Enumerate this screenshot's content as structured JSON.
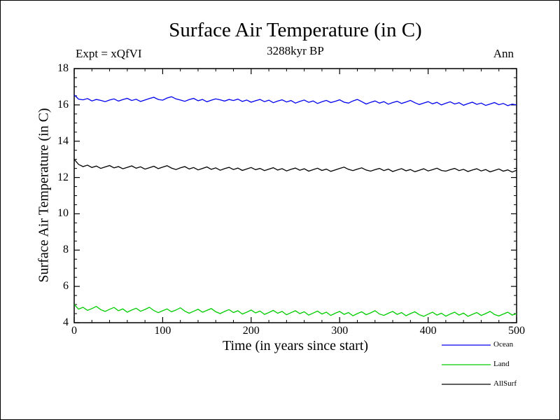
{
  "chart_data": {
    "type": "line",
    "title": "Surface Air Temperature (in C)",
    "annotations": {
      "experiment": "Expt = xQfVI",
      "time_bp": "3288kyr BP",
      "period": "Ann"
    },
    "xlabel": "Time (in years since start)",
    "ylabel": "Surface Air Temperature (in C)",
    "xlim": [
      0,
      500
    ],
    "ylim": [
      4,
      18
    ],
    "x_ticks": [
      0,
      100,
      200,
      300,
      400,
      500
    ],
    "x_minor_step": 20,
    "y_ticks": [
      4,
      6,
      8,
      10,
      12,
      14,
      16,
      18
    ],
    "y_minor_step": 0.5,
    "x_step": 5,
    "grid": false,
    "legend_position": "bottom-right",
    "frame_color": "#000000",
    "series": [
      {
        "name": "Ocean",
        "color": "#0000ee",
        "values": [
          16.55,
          16.32,
          16.28,
          16.35,
          16.22,
          16.3,
          16.25,
          16.18,
          16.27,
          16.33,
          16.21,
          16.29,
          16.36,
          16.24,
          16.31,
          16.19,
          16.27,
          16.35,
          16.42,
          16.3,
          16.26,
          16.38,
          16.45,
          16.33,
          16.27,
          16.2,
          16.29,
          16.36,
          16.23,
          16.3,
          16.17,
          16.26,
          16.33,
          16.28,
          16.21,
          16.3,
          16.24,
          16.32,
          16.19,
          16.27,
          16.15,
          16.23,
          16.3,
          16.18,
          16.26,
          16.12,
          16.21,
          16.28,
          16.16,
          16.24,
          16.1,
          16.19,
          16.27,
          16.14,
          16.22,
          16.08,
          16.17,
          16.25,
          16.13,
          16.2,
          16.28,
          16.15,
          16.1,
          16.22,
          16.3,
          16.18,
          16.05,
          16.14,
          16.22,
          16.1,
          16.18,
          16.04,
          16.13,
          16.2,
          16.08,
          16.16,
          16.25,
          16.12,
          16.02,
          16.1,
          16.18,
          16.06,
          16.14,
          16.0,
          16.09,
          16.17,
          16.05,
          16.12,
          15.98,
          16.07,
          16.15,
          16.03,
          16.1,
          15.97,
          16.05,
          16.13,
          16.01,
          16.08,
          15.96,
          16.04,
          16.0
        ]
      },
      {
        "name": "Land",
        "color": "#00cc00",
        "values": [
          5.0,
          4.75,
          4.85,
          4.68,
          4.78,
          4.9,
          4.72,
          4.62,
          4.74,
          4.84,
          4.66,
          4.76,
          4.58,
          4.7,
          4.8,
          4.63,
          4.73,
          4.85,
          4.67,
          4.55,
          4.66,
          4.76,
          4.6,
          4.7,
          4.82,
          4.64,
          4.52,
          4.63,
          4.74,
          4.58,
          4.68,
          4.78,
          4.6,
          4.5,
          4.62,
          4.72,
          4.56,
          4.66,
          4.48,
          4.58,
          4.7,
          4.54,
          4.64,
          4.46,
          4.56,
          4.68,
          4.52,
          4.62,
          4.44,
          4.55,
          4.66,
          4.5,
          4.6,
          4.42,
          4.53,
          4.64,
          4.48,
          4.58,
          4.4,
          4.52,
          4.62,
          4.46,
          4.56,
          4.38,
          4.5,
          4.6,
          4.44,
          4.54,
          4.66,
          4.48,
          4.4,
          4.52,
          4.62,
          4.46,
          4.56,
          4.38,
          4.5,
          4.6,
          4.44,
          4.35,
          4.47,
          4.58,
          4.42,
          4.52,
          4.36,
          4.48,
          4.58,
          4.42,
          4.53,
          4.35,
          4.46,
          4.56,
          4.4,
          4.5,
          4.62,
          4.45,
          4.37,
          4.48,
          4.58,
          4.42,
          4.5
        ]
      },
      {
        "name": "AllSurf",
        "color": "#000000",
        "values": [
          13.0,
          12.72,
          12.6,
          12.68,
          12.55,
          12.63,
          12.5,
          12.58,
          12.66,
          12.53,
          12.6,
          12.48,
          12.56,
          12.64,
          12.51,
          12.59,
          12.46,
          12.54,
          12.62,
          12.49,
          12.57,
          12.65,
          12.52,
          12.44,
          12.53,
          12.6,
          12.47,
          12.55,
          12.42,
          12.5,
          12.58,
          12.45,
          12.53,
          12.4,
          12.49,
          12.56,
          12.44,
          12.52,
          12.39,
          12.47,
          12.55,
          12.43,
          12.5,
          12.38,
          12.46,
          12.54,
          12.41,
          12.49,
          12.36,
          12.45,
          12.52,
          12.4,
          12.48,
          12.35,
          12.43,
          12.51,
          12.39,
          12.46,
          12.34,
          12.42,
          12.5,
          12.57,
          12.45,
          12.38,
          12.46,
          12.53,
          12.41,
          12.35,
          12.43,
          12.5,
          12.38,
          12.46,
          12.33,
          12.41,
          12.49,
          12.37,
          12.44,
          12.32,
          12.4,
          12.48,
          12.36,
          12.43,
          12.51,
          12.39,
          12.35,
          12.43,
          12.5,
          12.38,
          12.45,
          12.33,
          12.41,
          12.48,
          12.36,
          12.44,
          12.31,
          12.39,
          12.47,
          12.35,
          12.42,
          12.3,
          12.4
        ]
      }
    ]
  }
}
